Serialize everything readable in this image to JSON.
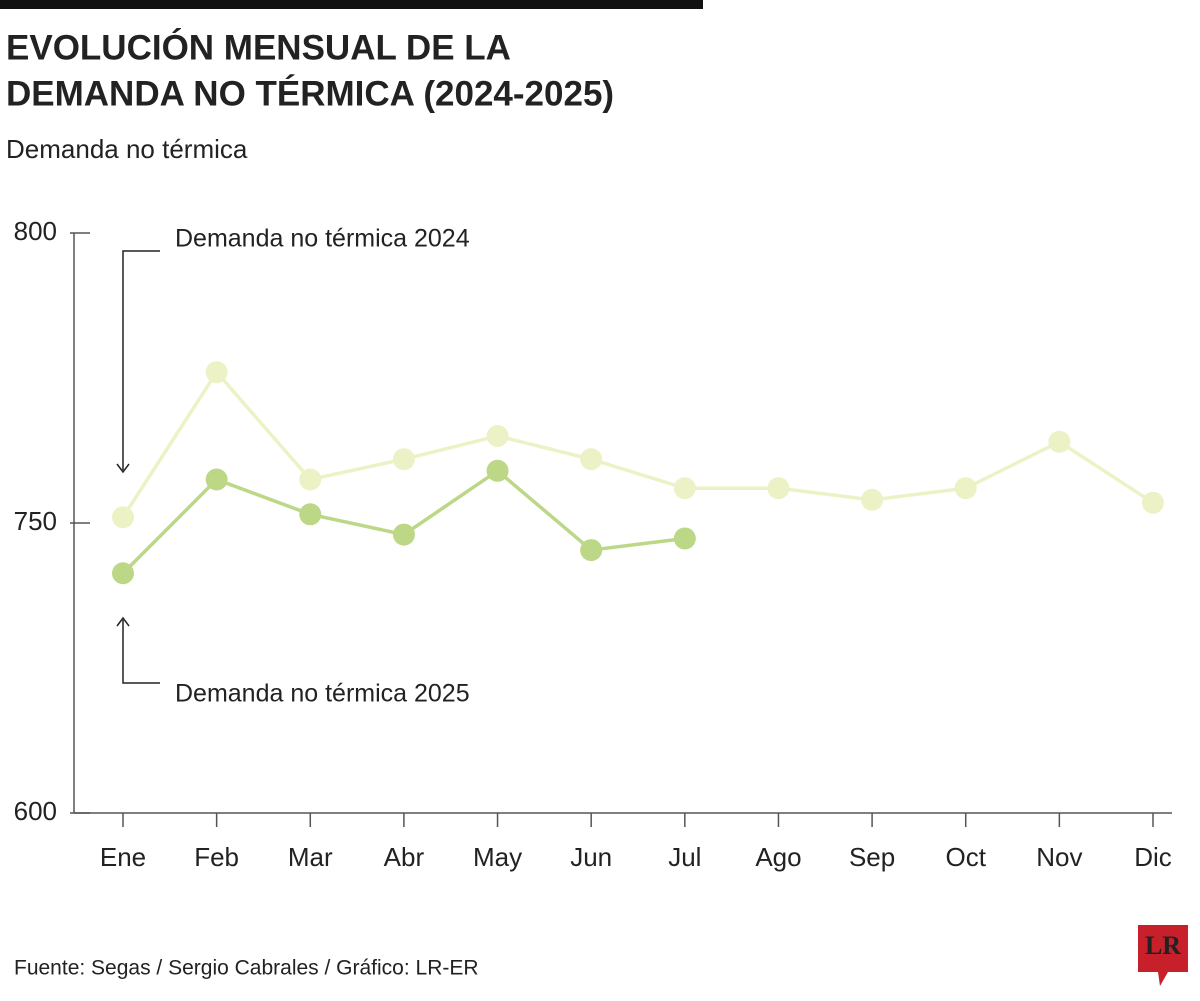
{
  "chart_data": {
    "type": "line",
    "title": [
      "EVOLUCIÓN MENSUAL DE LA",
      "DEMANDA NO TÉRMICA (2024-2025)"
    ],
    "subtitle": "Demanda no térmica",
    "categories": [
      "Ene",
      "Feb",
      "Mar",
      "Abr",
      "May",
      "Jun",
      "Jul",
      "Ago",
      "Sep",
      "Oct",
      "Nov",
      "Dic"
    ],
    "series": [
      {
        "name": "Demanda no térmica 2024",
        "color": "#edf2c6",
        "values": [
          751,
          776,
          757.5,
          761,
          765,
          761,
          756,
          756,
          754,
          756,
          764,
          753.5
        ]
      },
      {
        "name": "Demanda no térmica 2025",
        "color": "#bcd786",
        "values": [
          724,
          757.5,
          751.5,
          744,
          759,
          736,
          742,
          null,
          null,
          null,
          null,
          null
        ]
      }
    ],
    "ylim": [
      600,
      800
    ],
    "yticks": [
      600,
      750,
      800
    ],
    "source": "Fuente: Segas / Sergio Cabrales / Gráfico: LR-ER",
    "logo": "LR"
  }
}
